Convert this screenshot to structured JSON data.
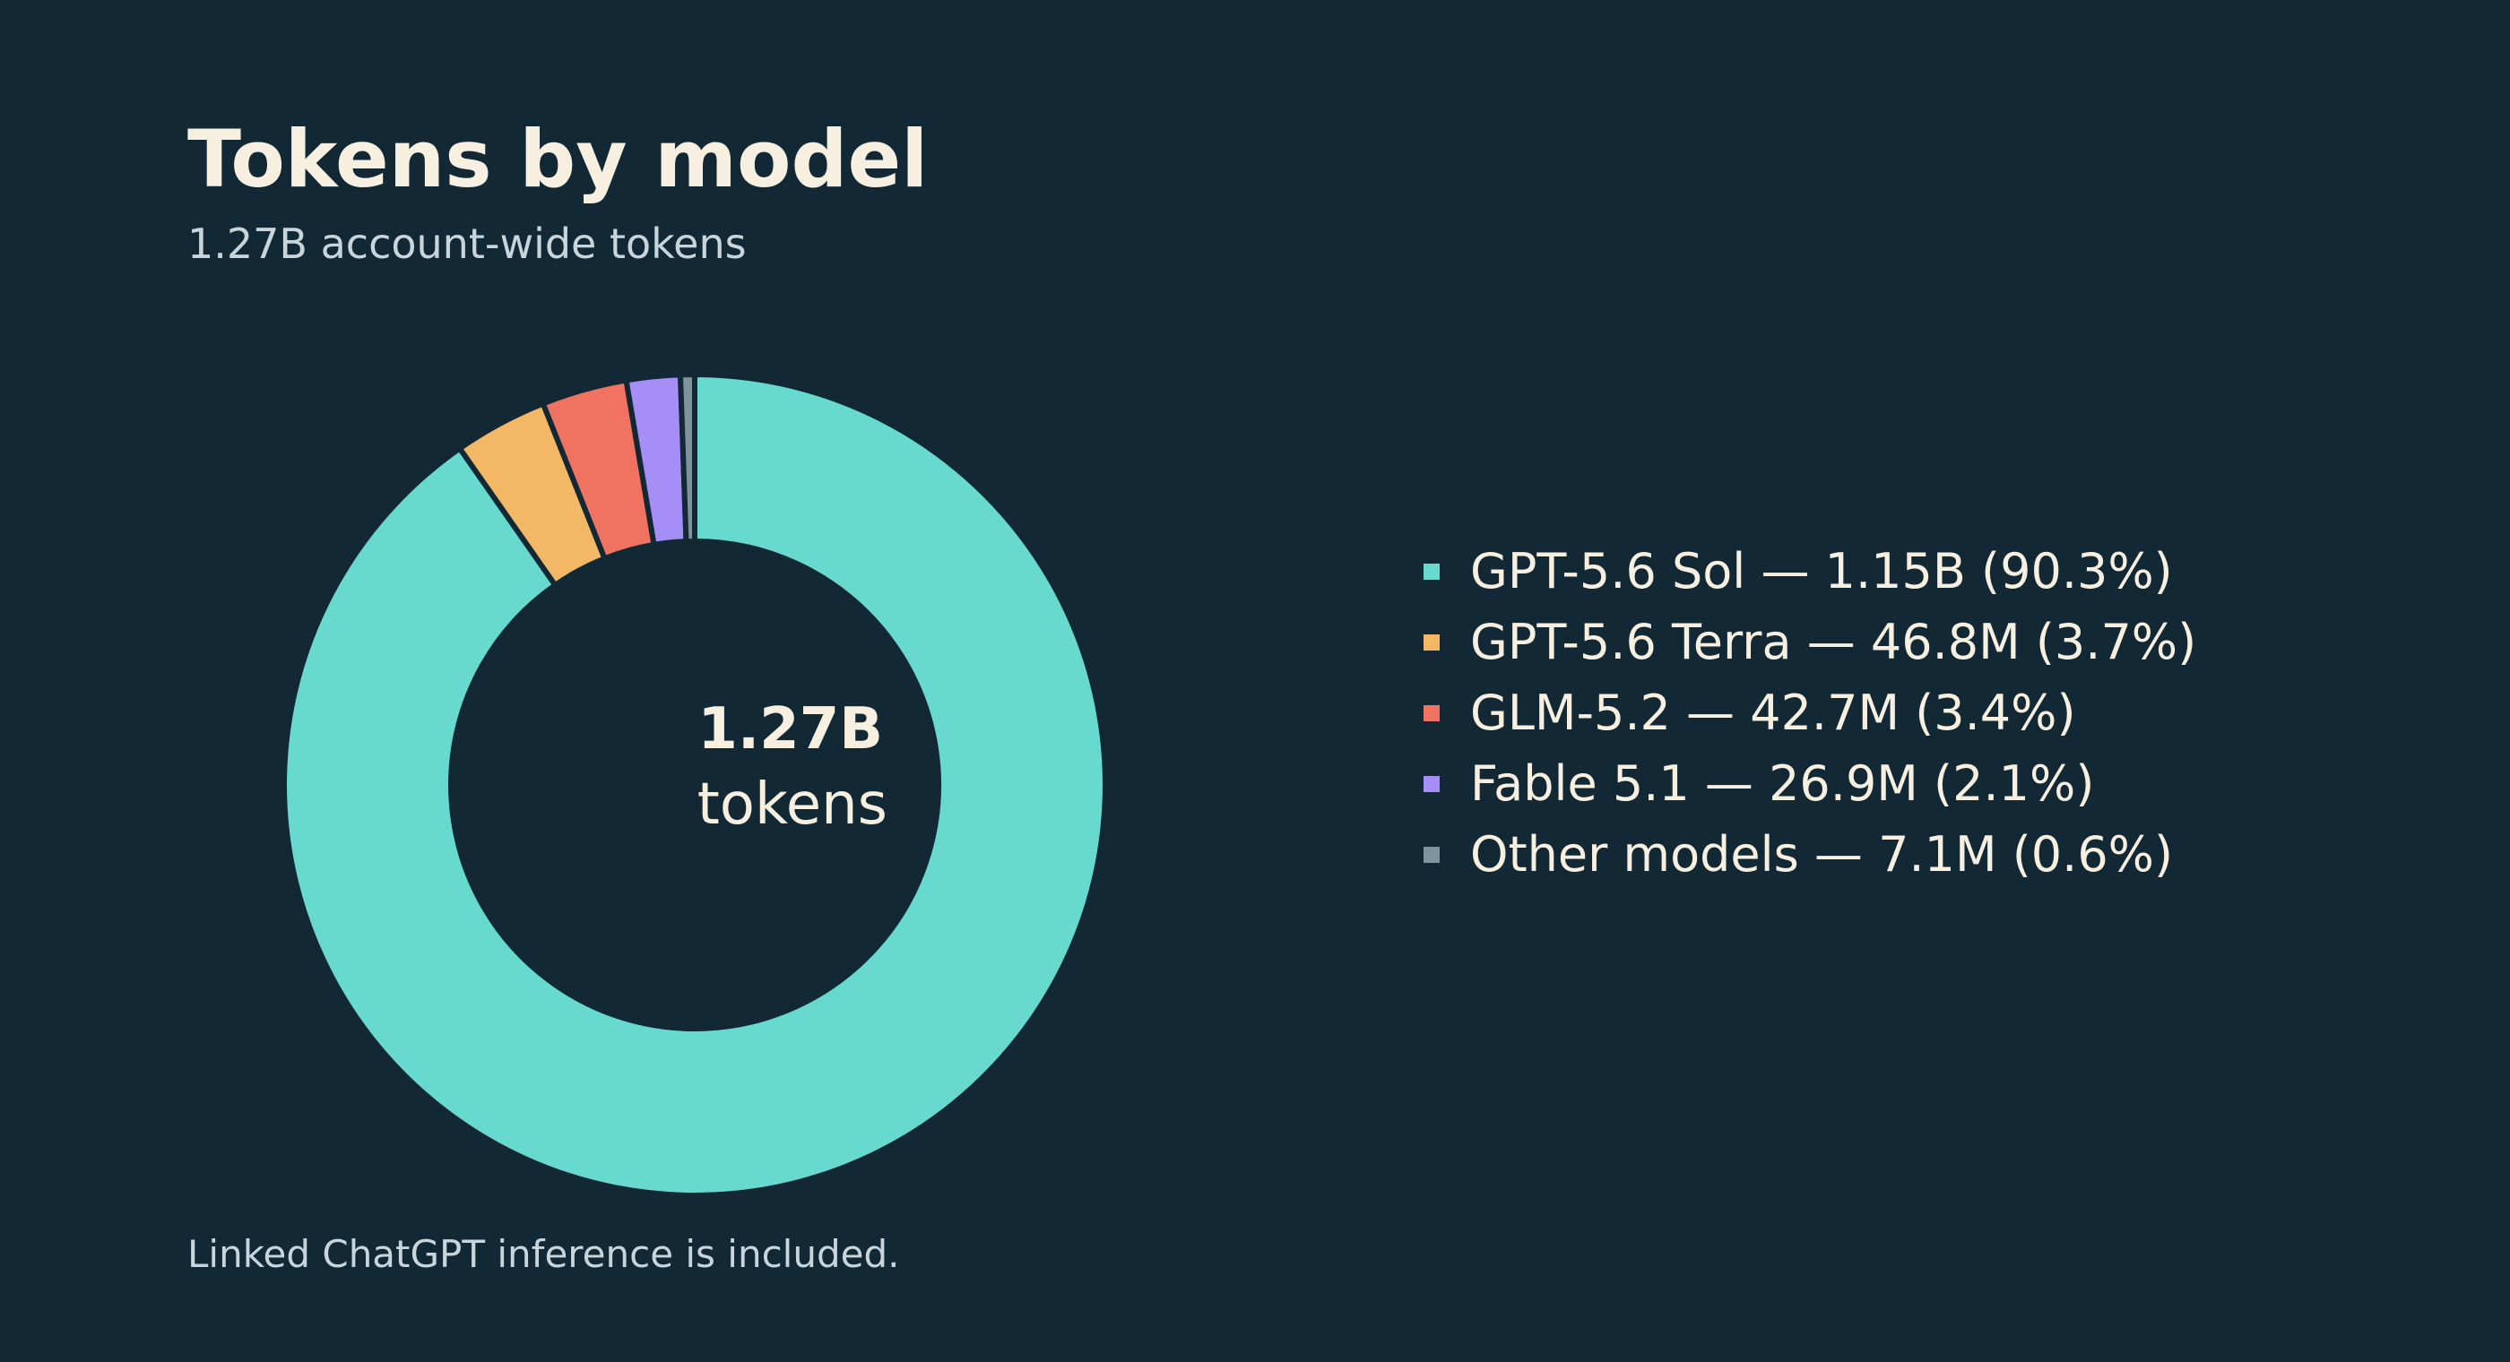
{
  "title": "Tokens by model",
  "subtitle": "1.27B account-wide tokens",
  "footnote": "Linked ChatGPT inference is included.",
  "colors": {
    "background": "#122834",
    "separator": "#122834",
    "text": "#f7f0e1",
    "muted_text": "#c8d6dc"
  },
  "center": {
    "value": "1.27B",
    "unit": "tokens"
  },
  "legend": [
    {
      "label": "GPT-5.6 Sol — 1.15B (90.3%)",
      "color": "#67d9cf"
    },
    {
      "label": "GPT-5.6 Terra — 46.8M (3.7%)",
      "color": "#f2b866"
    },
    {
      "label": "GLM-5.2 — 42.7M (3.4%)",
      "color": "#f07362"
    },
    {
      "label": "Fable 5.1 — 26.9M (2.1%)",
      "color": "#a58ef5"
    },
    {
      "label": "Other models — 7.1M (0.6%)",
      "color": "#7f939c"
    }
  ],
  "chart_data": {
    "type": "pie",
    "title": "Tokens by model",
    "subtitle": "1.27B account-wide tokens",
    "total_label": "1.27B tokens",
    "legend_position": "right",
    "categories": [
      "GPT-5.6 Sol",
      "GPT-5.6 Terra",
      "GLM-5.2",
      "Fable 5.1",
      "Other models"
    ],
    "values": [
      1150000000,
      46800000,
      42700000,
      26900000,
      7100000
    ],
    "percentages": [
      90.3,
      3.7,
      3.4,
      2.1,
      0.6
    ],
    "value_labels": [
      "1.15B",
      "46.8M",
      "42.7M",
      "26.9M",
      "7.1M"
    ],
    "colors": [
      "#67d9cf",
      "#f2b866",
      "#f07362",
      "#a58ef5",
      "#7f939c"
    ],
    "series": [
      {
        "values": [
          1150000000,
          46800000,
          42700000,
          26900000,
          7100000
        ]
      }
    ]
  }
}
